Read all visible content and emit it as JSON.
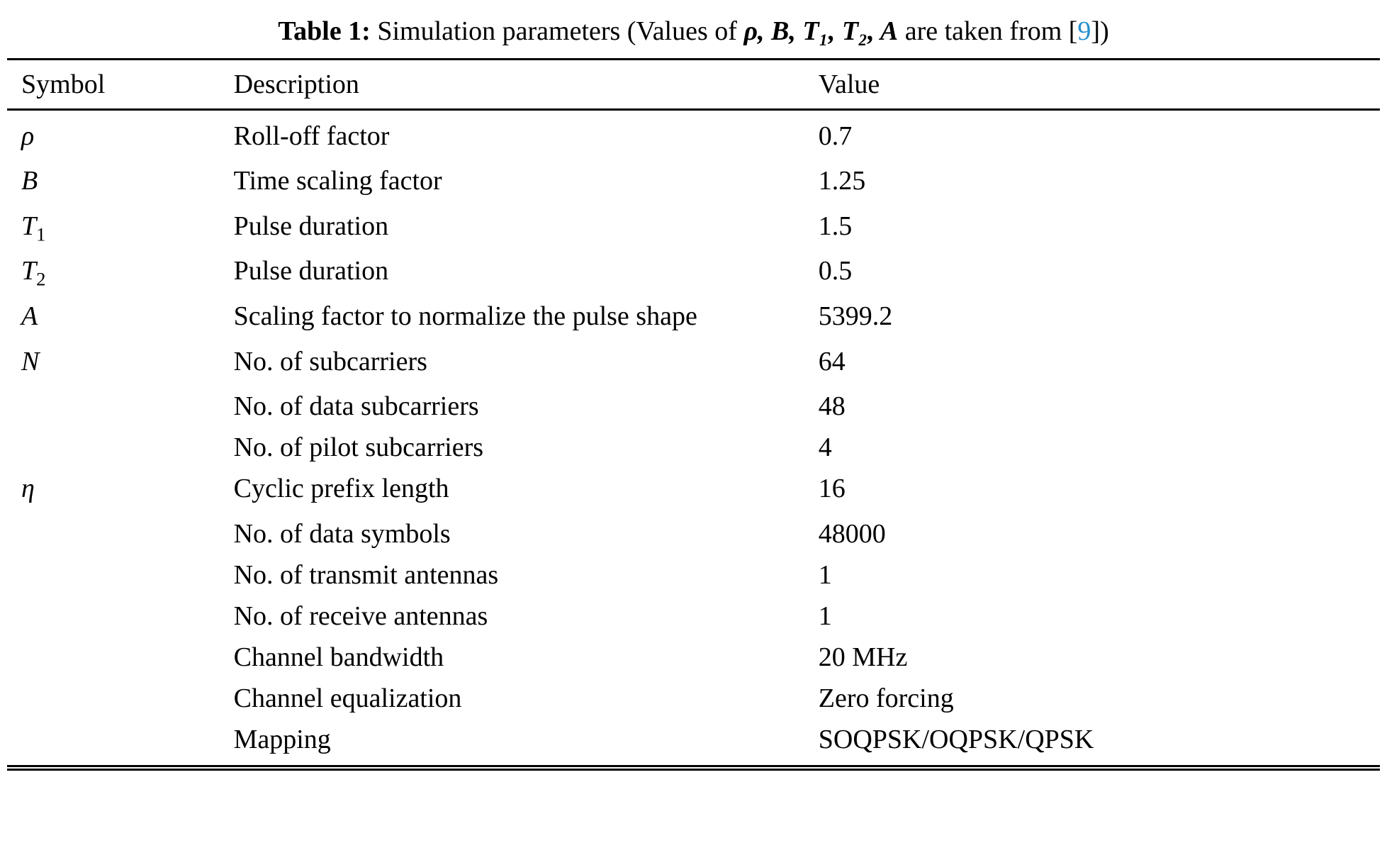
{
  "title": {
    "label": "Table 1:",
    "pre": " Simulation parameters (Values of ",
    "symbols": "ρ, B, T₁, T₂, A",
    "post": " are taken from [",
    "ref": "9",
    "post2": "])"
  },
  "colors": {
    "link": "#2590cc",
    "rule": "#000000",
    "text": "#000000"
  },
  "table": {
    "headers": [
      "Symbol",
      "Description",
      "Value"
    ],
    "rows": [
      {
        "symbol": "ρ",
        "symbol_sub": "",
        "description": "Roll-off factor",
        "value": "0.7"
      },
      {
        "symbol": "B",
        "symbol_sub": "",
        "description": "Time scaling factor",
        "value": "1.25"
      },
      {
        "symbol": "T",
        "symbol_sub": "1",
        "description": "Pulse duration",
        "value": "1.5"
      },
      {
        "symbol": "T",
        "symbol_sub": "2",
        "description": "Pulse duration",
        "value": "0.5"
      },
      {
        "symbol": "A",
        "symbol_sub": "",
        "description": "Scaling factor to normalize the pulse shape",
        "value": "5399.2"
      },
      {
        "symbol": "N",
        "symbol_sub": "",
        "description": "No. of subcarriers",
        "value": "64"
      },
      {
        "symbol": "",
        "symbol_sub": "",
        "description": "No. of data subcarriers",
        "value": "48"
      },
      {
        "symbol": "",
        "symbol_sub": "",
        "description": "No. of pilot subcarriers",
        "value": "4"
      },
      {
        "symbol": "η",
        "symbol_sub": "",
        "description": "Cyclic prefix length",
        "value": "16"
      },
      {
        "symbol": "",
        "symbol_sub": "",
        "description": "No. of data symbols",
        "value": "48000"
      },
      {
        "symbol": "",
        "symbol_sub": "",
        "description": "No. of transmit antennas",
        "value": "1"
      },
      {
        "symbol": "",
        "symbol_sub": "",
        "description": "No. of receive antennas",
        "value": "1"
      },
      {
        "symbol": "",
        "symbol_sub": "",
        "description": "Channel bandwidth",
        "value": "20 MHz"
      },
      {
        "symbol": "",
        "symbol_sub": "",
        "description": "Channel equalization",
        "value": "Zero forcing"
      },
      {
        "symbol": "",
        "symbol_sub": "",
        "description": "Mapping",
        "value": "SOQPSK/OQPSK/QPSK"
      }
    ]
  }
}
